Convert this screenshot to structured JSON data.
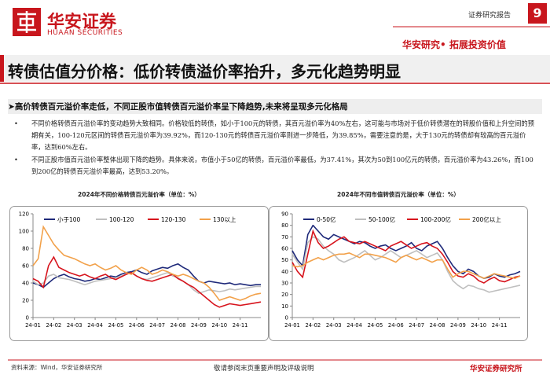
{
  "header": {
    "brand": "华安证券",
    "brand_en": "HUAAN SECURITIES",
    "report_type": "证券研究报告",
    "page": "9",
    "slogan": "华安研究• 拓展投资价值"
  },
  "title": "转债估值分价格：低价转债溢价率抬升，多元化趋势明显",
  "section": "高价转债百元溢价率走低，不同正股市值转债百元溢价率呈下降趋势,未来将呈现多元化格局",
  "bullets": [
    "不同价格转债百元溢价率的变动趋势大致相同。价格较低的转债，如小于100元的转债，其百元溢价率为40%左右，这可能与市场对于低价转债潜在的转股价值和上升空间的预期有关，100-120元区间的转债百元溢价率为39.92%，而120-130元的转债百元溢价率则进一步降低，为39.85%，需要注意的是，大于130元的转债却有较高的百元溢价率，达到60%左右。",
    "不同正股市值百元溢价率整体出现下降的趋势。具体来说，市值小于50亿的转债，百元溢价率最低，为37.41%，其次为50到100亿元的转债，百元溢价率为43.26%，而100到200亿的转债百元溢价率最高，达到53.20%。"
  ],
  "chart_data": [
    {
      "type": "line",
      "title": "2024年不同价格转债百元溢价率（单位：%）",
      "categories": [
        "24-01",
        null,
        null,
        null,
        "24-02",
        null,
        null,
        null,
        "24-03",
        null,
        null,
        null,
        "24-04",
        null,
        null,
        null,
        "24-05",
        null,
        null,
        null,
        "24-06",
        null,
        null,
        null,
        "24-07",
        null,
        null,
        null,
        "24-08",
        null,
        null,
        null,
        "24-09",
        null,
        null,
        null,
        "24-10",
        null,
        null,
        null,
        "24-11",
        null,
        null,
        null,
        null
      ],
      "ylim": [
        0,
        120
      ],
      "yticks": [
        0,
        20,
        40,
        60,
        80,
        100,
        120
      ],
      "grid": false,
      "legend": "top",
      "series": [
        {
          "name": "小于100",
          "color": "#1f2a7a",
          "values": [
            40,
            38,
            35,
            40,
            45,
            48,
            50,
            47,
            45,
            44,
            42,
            43,
            45,
            44,
            46,
            48,
            47,
            50,
            52,
            53,
            55,
            52,
            50,
            54,
            56,
            58,
            57,
            60,
            62,
            58,
            55,
            48,
            42,
            40,
            42,
            41,
            40,
            39,
            40,
            38,
            39,
            38,
            37,
            38,
            38
          ]
        },
        {
          "name": "100-120",
          "color": "#bfbfbf",
          "values": [
            42,
            38,
            40,
            48,
            50,
            46,
            45,
            44,
            42,
            40,
            38,
            40,
            42,
            43,
            44,
            45,
            46,
            48,
            50,
            52,
            48,
            45,
            44,
            46,
            48,
            50,
            52,
            48,
            46,
            42,
            38,
            32,
            28,
            30,
            32,
            31,
            30,
            31,
            33,
            32,
            33,
            34,
            35,
            36,
            36
          ]
        },
        {
          "name": "120-130",
          "color": "#d7141d",
          "values": [
            45,
            42,
            35,
            60,
            70,
            58,
            55,
            52,
            50,
            48,
            50,
            47,
            45,
            48,
            50,
            46,
            44,
            47,
            50,
            52,
            48,
            45,
            43,
            42,
            44,
            46,
            48,
            50,
            45,
            42,
            38,
            35,
            30,
            25,
            20,
            15,
            12,
            14,
            16,
            15,
            14,
            15,
            16,
            17,
            18
          ]
        },
        {
          "name": "130以上",
          "color": "#f2a14a",
          "values": [
            60,
            68,
            105,
            95,
            85,
            78,
            72,
            70,
            68,
            65,
            62,
            60,
            62,
            58,
            55,
            57,
            60,
            55,
            52,
            50,
            55,
            58,
            55,
            50,
            52,
            55,
            53,
            50,
            48,
            50,
            48,
            45,
            42,
            40,
            35,
            28,
            20,
            22,
            24,
            22,
            20,
            22,
            25,
            27,
            28
          ]
        }
      ]
    },
    {
      "type": "line",
      "title": "2024年不同市值转债百元溢价率（单位：%）",
      "categories": [
        "24-01",
        null,
        null,
        null,
        "24-02",
        null,
        null,
        null,
        "24-03",
        null,
        null,
        null,
        "24-04",
        null,
        null,
        null,
        "24-05",
        null,
        null,
        null,
        "24-06",
        null,
        null,
        null,
        "24-07",
        null,
        null,
        null,
        "24-08",
        null,
        null,
        null,
        "24-09",
        null,
        null,
        null,
        "24-10",
        null,
        null,
        null,
        "24-11",
        null,
        null,
        null,
        null
      ],
      "ylim": [
        0,
        90
      ],
      "yticks": [
        0,
        10,
        20,
        30,
        40,
        50,
        60,
        70,
        80,
        90
      ],
      "grid": false,
      "legend": "top",
      "series": [
        {
          "name": "0-50亿",
          "color": "#1f2a7a",
          "values": [
            58,
            50,
            45,
            72,
            80,
            75,
            70,
            68,
            72,
            70,
            68,
            66,
            64,
            66,
            65,
            62,
            60,
            62,
            63,
            60,
            58,
            60,
            62,
            65,
            60,
            58,
            62,
            64,
            66,
            60,
            52,
            45,
            40,
            38,
            42,
            40,
            36,
            34,
            35,
            38,
            36,
            35,
            37,
            38,
            40
          ]
        },
        {
          "name": "50-100亿",
          "color": "#bfbfbf",
          "values": [
            55,
            48,
            42,
            65,
            70,
            68,
            62,
            58,
            55,
            50,
            48,
            50,
            52,
            55,
            58,
            54,
            50,
            52,
            55,
            58,
            55,
            52,
            54,
            56,
            58,
            55,
            52,
            54,
            56,
            50,
            40,
            32,
            28,
            25,
            28,
            27,
            25,
            24,
            22,
            23,
            24,
            25,
            26,
            27,
            28
          ]
        },
        {
          "name": "100-200亿",
          "color": "#d7141d",
          "values": [
            48,
            40,
            35,
            55,
            75,
            65,
            60,
            62,
            65,
            68,
            70,
            66,
            65,
            64,
            66,
            64,
            62,
            60,
            58,
            62,
            64,
            66,
            63,
            60,
            62,
            64,
            65,
            62,
            60,
            55,
            48,
            40,
            36,
            35,
            38,
            36,
            32,
            30,
            33,
            35,
            32,
            31,
            33,
            35,
            36
          ]
        },
        {
          "name": "200亿以上",
          "color": "#f2a14a",
          "values": [
            45,
            44,
            45,
            48,
            50,
            52,
            50,
            52,
            54,
            55,
            55,
            56,
            54,
            52,
            55,
            55,
            54,
            53,
            52,
            50,
            48,
            52,
            54,
            52,
            50,
            52,
            50,
            48,
            50,
            50,
            42,
            35,
            38,
            40,
            40,
            38,
            36,
            34,
            36,
            38,
            37,
            36,
            35,
            34,
            36
          ]
        }
      ]
    }
  ],
  "footer": {
    "source": "资料来源：Wind，华安证券研究所",
    "disclaimer": "敬请参阅末页重要声明及评级说明",
    "org": "华安证券研究所"
  }
}
